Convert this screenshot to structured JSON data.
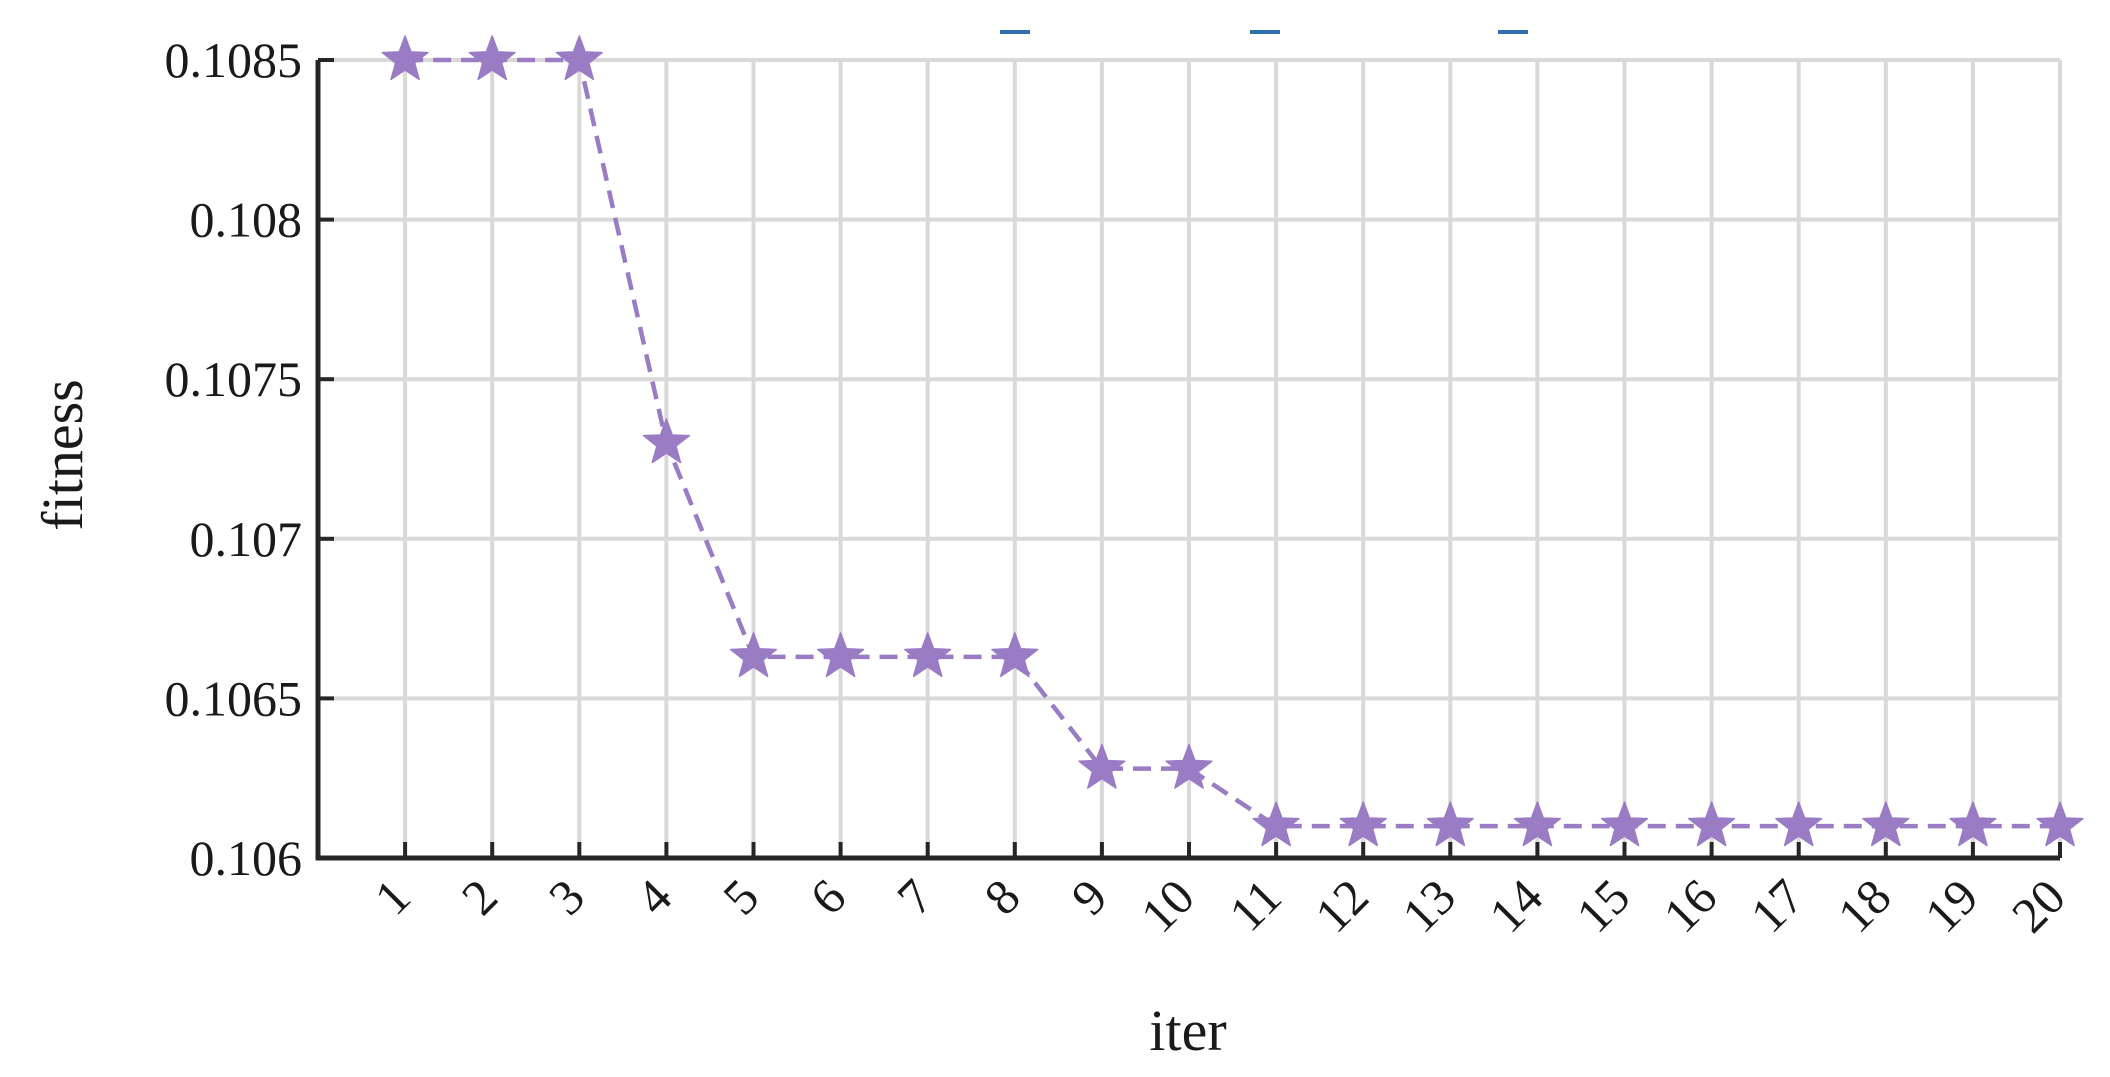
{
  "chart_data": {
    "type": "line",
    "xlabel": "iter",
    "ylabel": "fitness",
    "x": [
      1,
      2,
      3,
      4,
      5,
      6,
      7,
      8,
      9,
      10,
      11,
      12,
      13,
      14,
      15,
      16,
      17,
      18,
      19,
      20
    ],
    "x_ticks": [
      "1",
      "2",
      "3",
      "4",
      "5",
      "6",
      "7",
      "8",
      "9",
      "10",
      "11",
      "12",
      "13",
      "14",
      "15",
      "16",
      "17",
      "18",
      "19",
      "20"
    ],
    "xlim": [
      0,
      20
    ],
    "y_ticks": [
      "0.106",
      "0.1065",
      "0.107",
      "0.1075",
      "0.108",
      "0.1085"
    ],
    "y_tick_values": [
      0.106,
      0.1065,
      0.107,
      0.1075,
      0.108,
      0.1085
    ],
    "ylim": [
      0.106,
      0.1085
    ],
    "grid": true,
    "series": [
      {
        "values": [
          0.1085,
          0.1085,
          0.1085,
          0.1073,
          0.10663,
          0.10663,
          0.10663,
          0.10663,
          0.10628,
          0.10628,
          0.1061,
          0.1061,
          0.1061,
          0.1061,
          0.1061,
          0.1061,
          0.1061,
          0.1061,
          0.1061,
          0.1061
        ],
        "color": "#9a7cc4",
        "line_style": "dashed",
        "marker": "star"
      }
    ],
    "legend_fragments_color": "#2f6fb0"
  }
}
